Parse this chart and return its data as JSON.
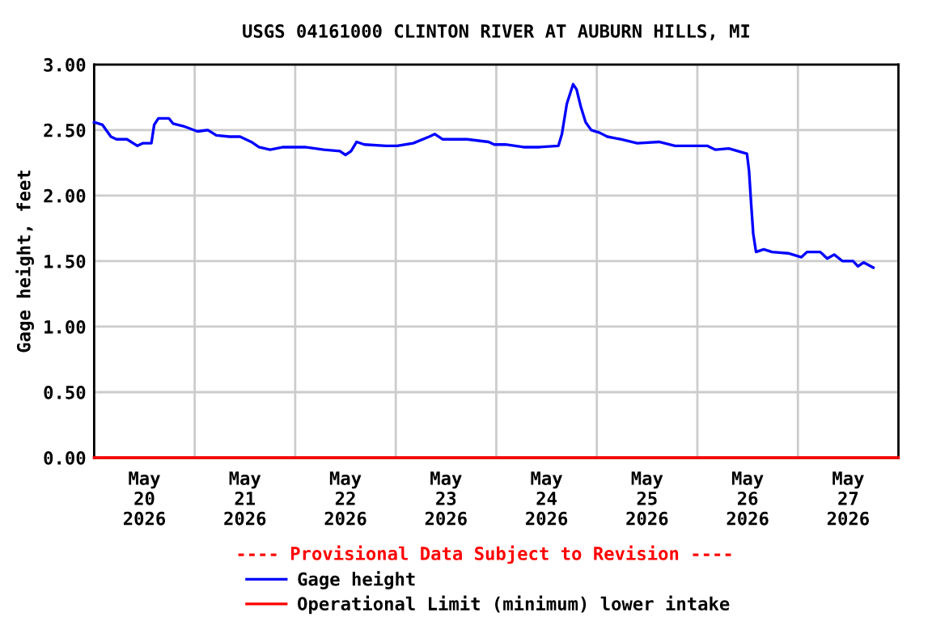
{
  "chart_data": {
    "type": "line",
    "title": "USGS 04161000 CLINTON RIVER AT AUBURN HILLS, MI",
    "ylabel": "Gage height, feet",
    "xlim": [
      "2026-05-20T00:00",
      "2026-05-28T00:00"
    ],
    "xticks": [
      {
        "value": "2026-05-20T00:00",
        "label": null
      },
      {
        "value": "2026-05-20T12:00",
        "label": "May\n20\n2026"
      },
      {
        "value": "2026-05-21T00:00",
        "label": null
      },
      {
        "value": "2026-05-21T12:00",
        "label": "May\n21\n2026"
      },
      {
        "value": "2026-05-22T00:00",
        "label": null
      },
      {
        "value": "2026-05-22T12:00",
        "label": "May\n22\n2026"
      },
      {
        "value": "2026-05-23T00:00",
        "label": null
      },
      {
        "value": "2026-05-23T12:00",
        "label": "May\n23\n2026"
      },
      {
        "value": "2026-05-24T00:00",
        "label": null
      },
      {
        "value": "2026-05-24T12:00",
        "label": "May\n24\n2026"
      },
      {
        "value": "2026-05-25T00:00",
        "label": null
      },
      {
        "value": "2026-05-25T12:00",
        "label": "May\n25\n2026"
      },
      {
        "value": "2026-05-26T00:00",
        "label": null
      },
      {
        "value": "2026-05-26T12:00",
        "label": "May\n26\n2026"
      },
      {
        "value": "2026-05-27T00:00",
        "label": null
      },
      {
        "value": "2026-05-27T12:00",
        "label": "May\n27\n2026"
      },
      {
        "value": "2026-05-28T00:00",
        "label": null
      }
    ],
    "ylim": [
      0,
      3
    ],
    "yticks": [
      {
        "value": 0,
        "label": "0.00"
      },
      {
        "value": 0.5,
        "label": "0.50"
      },
      {
        "value": 1,
        "label": "1.00"
      },
      {
        "value": 1.5,
        "label": "1.50"
      },
      {
        "value": 2,
        "label": "2.00"
      },
      {
        "value": 2.5,
        "label": "2.50"
      },
      {
        "value": 3,
        "label": "3.00"
      }
    ],
    "grid": true,
    "legend": "bottom",
    "annotations": [
      "---- Provisional Data Subject to Revision ----"
    ],
    "series": [
      {
        "name": "Gage height",
        "color": "#0000ff",
        "x": [
          "2026-05-20T00:00",
          "2026-05-20T02:00",
          "2026-05-20T04:00",
          "2026-05-20T05:20",
          "2026-05-20T07:50",
          "2026-05-20T10:20",
          "2026-05-20T11:40",
          "2026-05-20T13:40",
          "2026-05-20T14:20",
          "2026-05-20T15:20",
          "2026-05-20T17:50",
          "2026-05-20T18:50",
          "2026-05-20T21:20",
          "2026-05-21T00:40",
          "2026-05-21T03:10",
          "2026-05-21T05:10",
          "2026-05-21T08:20",
          "2026-05-21T10:50",
          "2026-05-21T13:30",
          "2026-05-21T15:20",
          "2026-05-21T18:00",
          "2026-05-21T21:10",
          "2026-05-22T02:20",
          "2026-05-22T06:50",
          "2026-05-22T10:40",
          "2026-05-22T12:00",
          "2026-05-22T13:20",
          "2026-05-22T14:40",
          "2026-05-22T16:30",
          "2026-05-22T21:40",
          "2026-05-23T00:20",
          "2026-05-23T04:10",
          "2026-05-23T08:00",
          "2026-05-23T09:20",
          "2026-05-23T11:10",
          "2026-05-23T17:00",
          "2026-05-23T22:10",
          "2026-05-23T23:30",
          "2026-05-24T02:10",
          "2026-05-24T06:30",
          "2026-05-24T10:20",
          "2026-05-24T14:50",
          "2026-05-24T15:40",
          "2026-05-24T16:50",
          "2026-05-24T18:20",
          "2026-05-24T19:10",
          "2026-05-24T20:10",
          "2026-05-24T21:20",
          "2026-05-24T22:40",
          "2026-05-25T00:40",
          "2026-05-25T02:30",
          "2026-05-25T05:40",
          "2026-05-25T09:40",
          "2026-05-25T14:50",
          "2026-05-25T18:40",
          "2026-05-26T02:20",
          "2026-05-26T04:20",
          "2026-05-26T07:30",
          "2026-05-26T10:40",
          "2026-05-26T11:50",
          "2026-05-26T12:20",
          "2026-05-26T12:50",
          "2026-05-26T13:20",
          "2026-05-26T14:00",
          "2026-05-26T15:50",
          "2026-05-26T17:50",
          "2026-05-26T21:40",
          "2026-05-27T00:50",
          "2026-05-27T02:10",
          "2026-05-27T05:20",
          "2026-05-27T07:00",
          "2026-05-27T08:40",
          "2026-05-27T10:40",
          "2026-05-27T13:10",
          "2026-05-27T14:20",
          "2026-05-27T15:40",
          "2026-05-27T18:00"
        ],
        "values": [
          2.56,
          2.54,
          2.45,
          2.43,
          2.43,
          2.38,
          2.4,
          2.4,
          2.54,
          2.59,
          2.59,
          2.55,
          2.53,
          2.49,
          2.5,
          2.46,
          2.45,
          2.45,
          2.41,
          2.37,
          2.35,
          2.37,
          2.37,
          2.35,
          2.34,
          2.31,
          2.34,
          2.41,
          2.39,
          2.38,
          2.38,
          2.4,
          2.45,
          2.47,
          2.43,
          2.43,
          2.41,
          2.39,
          2.39,
          2.37,
          2.37,
          2.38,
          2.47,
          2.7,
          2.85,
          2.81,
          2.68,
          2.56,
          2.5,
          2.48,
          2.45,
          2.43,
          2.4,
          2.41,
          2.38,
          2.38,
          2.35,
          2.36,
          2.33,
          2.32,
          2.19,
          1.94,
          1.71,
          1.57,
          1.59,
          1.57,
          1.56,
          1.53,
          1.57,
          1.57,
          1.52,
          1.55,
          1.5,
          1.5,
          1.46,
          1.49,
          1.45
        ]
      },
      {
        "name": "Operational Limit (minimum) lower intake",
        "color": "#ff0000",
        "x": [
          "2026-05-20T00:00",
          "2026-05-28T00:00"
        ],
        "values": [
          0,
          0
        ]
      }
    ]
  }
}
